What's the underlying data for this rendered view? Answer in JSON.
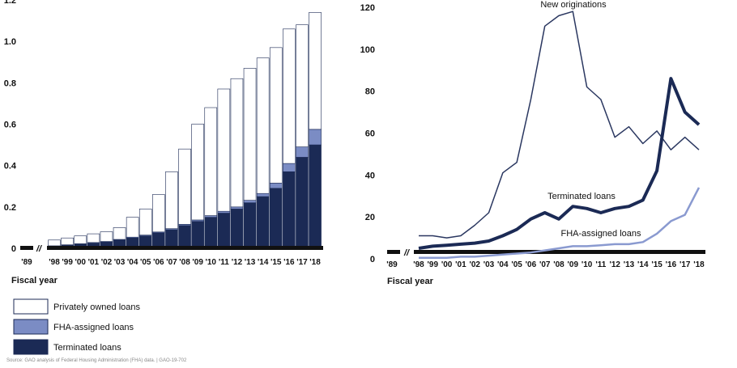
{
  "chart_data": [
    {
      "type": "bar",
      "stacked": true,
      "xlabel": "Fiscal year",
      "ylabel": "",
      "ylim": [
        0,
        1.2
      ],
      "yticks": [
        "0",
        "0.2",
        "0.4",
        "0.6",
        "0.8",
        "1.0",
        "1.2"
      ],
      "categories": [
        "'89",
        "'98",
        "'99",
        "'00",
        "'01",
        "'02",
        "'03",
        "'04",
        "'05",
        "'06",
        "'07",
        "'08",
        "'09",
        "'10",
        "'11",
        "'12",
        "'13",
        "'14",
        "'15",
        "'16",
        "'17",
        "'18"
      ],
      "series": [
        {
          "name": "Terminated loans",
          "color": "#1b2a55",
          "values": [
            null,
            0.01,
            0.015,
            0.02,
            0.025,
            0.03,
            0.04,
            0.05,
            0.06,
            0.075,
            0.09,
            0.11,
            0.13,
            0.15,
            0.17,
            0.19,
            0.22,
            0.25,
            0.29,
            0.37,
            0.44,
            0.5
          ]
        },
        {
          "name": "FHA-assigned loans",
          "color": "#7b8cc4",
          "values": [
            null,
            0.002,
            0.002,
            0.002,
            0.003,
            0.003,
            0.003,
            0.004,
            0.004,
            0.004,
            0.005,
            0.006,
            0.007,
            0.008,
            0.009,
            0.01,
            0.012,
            0.015,
            0.025,
            0.04,
            0.05,
            0.075
          ]
        },
        {
          "name": "Privately owned loans",
          "color": "#ffffff",
          "values": [
            null,
            0.028,
            0.033,
            0.038,
            0.042,
            0.047,
            0.057,
            0.096,
            0.126,
            0.181,
            0.275,
            0.364,
            0.463,
            0.522,
            0.591,
            0.62,
            0.638,
            0.655,
            0.655,
            0.65,
            0.59,
            0.565
          ]
        }
      ]
    },
    {
      "type": "line",
      "xlabel": "Fiscal year",
      "ylabel": "",
      "ylim": [
        0,
        120
      ],
      "yticks": [
        "0",
        "20",
        "40",
        "60",
        "80",
        "100",
        "120"
      ],
      "categories": [
        "'89",
        "'98",
        "'99",
        "'00",
        "'01",
        "'02",
        "'03",
        "'04",
        "'05",
        "'06",
        "'07",
        "'08",
        "'09",
        "'10",
        "'11",
        "'12",
        "'13",
        "'14",
        "'15",
        "'16",
        "'17",
        "'18"
      ],
      "series": [
        {
          "name": "New originations",
          "color": "#2a3760",
          "width": 1.5,
          "values": [
            null,
            11,
            11,
            10,
            11,
            16,
            22,
            41,
            46,
            76,
            111,
            116,
            118,
            82,
            76,
            58,
            63,
            55,
            61,
            52,
            58,
            52
          ]
        },
        {
          "name": "Terminated loans",
          "color": "#1b2a55",
          "width": 4,
          "values": [
            null,
            5,
            6,
            6.5,
            7,
            7.5,
            8.5,
            11,
            14,
            19,
            22,
            19,
            25,
            24,
            22,
            24,
            25,
            28,
            42,
            86,
            70,
            64
          ]
        },
        {
          "name": "FHA-assigned loans",
          "color": "#8a9ad0",
          "width": 2.5,
          "values": [
            null,
            0.5,
            0.5,
            0.5,
            1,
            1,
            1.5,
            2,
            2.5,
            3,
            4,
            5,
            6,
            6,
            6.5,
            7,
            7,
            8,
            12,
            18,
            21,
            34
          ]
        }
      ]
    }
  ],
  "legend": [
    {
      "label": "Privately owned loans",
      "color": "#ffffff"
    },
    {
      "label": "FHA-assigned loans",
      "color": "#7b8cc4"
    },
    {
      "label": "Terminated loans",
      "color": "#1b2a55"
    }
  ],
  "break_mark": "//",
  "source_note": "Source: GAO analysis of Federal Housing Administration (FHA) data. | GAO-19-702"
}
